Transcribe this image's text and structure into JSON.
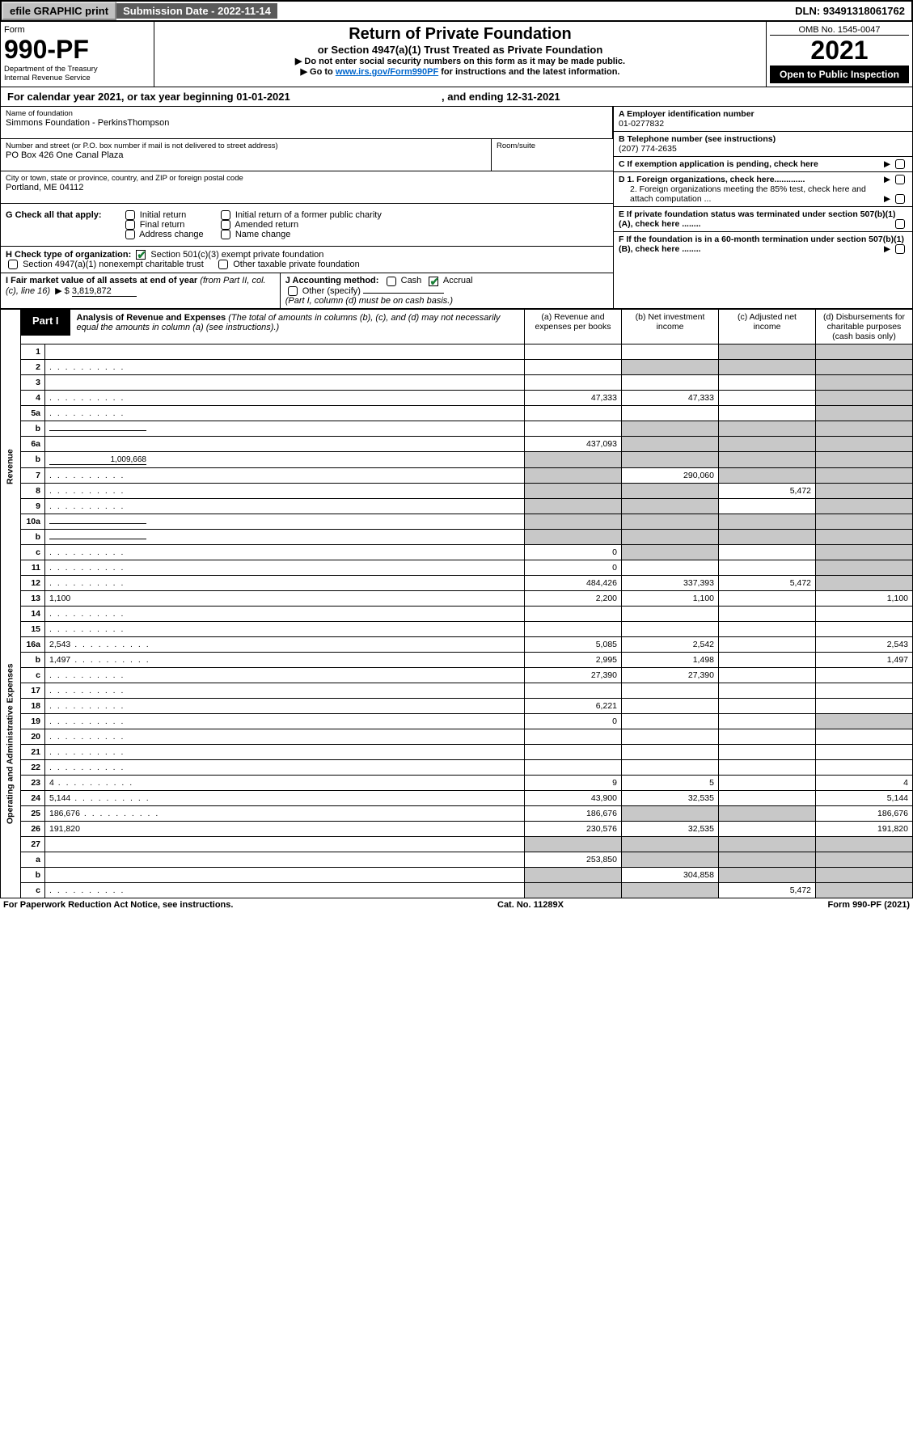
{
  "topbar": {
    "efile": "efile GRAPHIC print",
    "submission_label": "Submission Date - 2022-11-14",
    "dln": "DLN: 93491318061762"
  },
  "header": {
    "form_word": "Form",
    "form_no": "990-PF",
    "dept": "Department of the Treasury",
    "irs": "Internal Revenue Service",
    "title": "Return of Private Foundation",
    "subtitle": "or Section 4947(a)(1) Trust Treated as Private Foundation",
    "warn": "▶ Do not enter social security numbers on this form as it may be made public.",
    "goto_pre": "▶ Go to ",
    "goto_link": "www.irs.gov/Form990PF",
    "goto_post": " for instructions and the latest information.",
    "omb": "OMB No. 1545-0047",
    "year": "2021",
    "open": "Open to Public Inspection"
  },
  "cal": {
    "text_a": "For calendar year 2021, or tax year beginning ",
    "begin": "01-01-2021",
    "text_b": ", and ending ",
    "end": "12-31-2021"
  },
  "name_block": {
    "label": "Name of foundation",
    "value": "Simmons Foundation - PerkinsThompson",
    "addr_label": "Number and street (or P.O. box number if mail is not delivered to street address)",
    "addr": "PO Box 426 One Canal Plaza",
    "room_label": "Room/suite",
    "city_label": "City or town, state or province, country, and ZIP or foreign postal code",
    "city": "Portland, ME  04112"
  },
  "right_block": {
    "a_label": "A Employer identification number",
    "a_val": "01-0277832",
    "b_label": "B Telephone number (see instructions)",
    "b_val": "(207) 774-2635",
    "c_label": "C If exemption application is pending, check here",
    "d1": "D 1. Foreign organizations, check here.............",
    "d2": "2. Foreign organizations meeting the 85% test, check here and attach computation ...",
    "e": "E  If private foundation status was terminated under section 507(b)(1)(A), check here ........",
    "f": "F  If the foundation is in a 60-month termination under section 507(b)(1)(B), check here ........"
  },
  "g": {
    "label": "G Check all that apply:",
    "opts": [
      "Initial return",
      "Final return",
      "Address change",
      "Initial return of a former public charity",
      "Amended return",
      "Name change"
    ]
  },
  "h": {
    "label": "H Check type of organization:",
    "o1": "Section 501(c)(3) exempt private foundation",
    "o2": "Section 4947(a)(1) nonexempt charitable trust",
    "o3": "Other taxable private foundation"
  },
  "i": {
    "label_a": "I Fair market value of all assets at end of year ",
    "label_b": "(from Part II, col. (c), line 16)",
    "arrow": "▶ $",
    "val": "3,819,872"
  },
  "j": {
    "label": "J Accounting method:",
    "cash": "Cash",
    "accrual": "Accrual",
    "other": "Other (specify)",
    "note": "(Part I, column (d) must be on cash basis.)"
  },
  "part1": {
    "tag": "Part I",
    "title": "Analysis of Revenue and Expenses",
    "note": " (The total of amounts in columns (b), (c), and (d) may not necessarily equal the amounts in column (a) (see instructions).)",
    "col_a": "(a) Revenue and expenses per books",
    "col_b": "(b) Net investment income",
    "col_c": "(c) Adjusted net income",
    "col_d": "(d) Disbursements for charitable purposes (cash basis only)"
  },
  "vert": {
    "rev": "Revenue",
    "exp": "Operating and Administrative Expenses"
  },
  "rows": [
    {
      "n": "1",
      "d": "",
      "a": "",
      "b": "",
      "c": "",
      "sa": 0,
      "sb": 0,
      "sc": 1,
      "sd": 1
    },
    {
      "n": "2",
      "d": "",
      "a": "",
      "b": "",
      "c": "",
      "sa": 0,
      "sb": 1,
      "sc": 1,
      "sd": 1,
      "dots": 1,
      "raw": 1
    },
    {
      "n": "3",
      "d": "",
      "a": "",
      "b": "",
      "c": "",
      "sa": 0,
      "sb": 0,
      "sc": 0,
      "sd": 1
    },
    {
      "n": "4",
      "d": "",
      "a": "47,333",
      "b": "47,333",
      "c": "",
      "sa": 0,
      "sb": 0,
      "sc": 0,
      "sd": 1,
      "dots": 1
    },
    {
      "n": "5a",
      "d": "",
      "a": "",
      "b": "",
      "c": "",
      "sa": 0,
      "sb": 0,
      "sc": 0,
      "sd": 1,
      "dots": 1
    },
    {
      "n": "b",
      "d": "",
      "a": "",
      "b": "",
      "c": "",
      "sa": 0,
      "sb": 1,
      "sc": 1,
      "sd": 1,
      "inline": 1
    },
    {
      "n": "6a",
      "d": "",
      "a": "437,093",
      "b": "",
      "c": "",
      "sa": 0,
      "sb": 1,
      "sc": 1,
      "sd": 1
    },
    {
      "n": "b",
      "d": "",
      "a": "",
      "b": "",
      "c": "",
      "sa": 1,
      "sb": 1,
      "sc": 1,
      "sd": 1,
      "inline": 1,
      "inlineval": "1,009,668"
    },
    {
      "n": "7",
      "d": "",
      "a": "",
      "b": "290,060",
      "c": "",
      "sa": 1,
      "sb": 0,
      "sc": 1,
      "sd": 1,
      "dots": 1
    },
    {
      "n": "8",
      "d": "",
      "a": "",
      "b": "",
      "c": "5,472",
      "sa": 1,
      "sb": 1,
      "sc": 0,
      "sd": 1,
      "dots": 1
    },
    {
      "n": "9",
      "d": "",
      "a": "",
      "b": "",
      "c": "",
      "sa": 1,
      "sb": 1,
      "sc": 0,
      "sd": 1,
      "dots": 1
    },
    {
      "n": "10a",
      "d": "",
      "a": "",
      "b": "",
      "c": "",
      "sa": 1,
      "sb": 1,
      "sc": 1,
      "sd": 1,
      "inline": 1
    },
    {
      "n": "b",
      "d": "",
      "a": "",
      "b": "",
      "c": "",
      "sa": 1,
      "sb": 1,
      "sc": 1,
      "sd": 1,
      "inline": 1,
      "dots": 1
    },
    {
      "n": "c",
      "d": "",
      "a": "0",
      "b": "",
      "c": "",
      "sa": 0,
      "sb": 1,
      "sc": 0,
      "sd": 1,
      "dots": 1
    },
    {
      "n": "11",
      "d": "",
      "a": "0",
      "b": "",
      "c": "",
      "sa": 0,
      "sb": 0,
      "sc": 0,
      "sd": 1,
      "dots": 1
    },
    {
      "n": "12",
      "d": "",
      "a": "484,426",
      "b": "337,393",
      "c": "5,472",
      "sa": 0,
      "sb": 0,
      "sc": 0,
      "sd": 1,
      "dots": 1,
      "raw": 1
    },
    {
      "n": "13",
      "d": "1,100",
      "a": "2,200",
      "b": "1,100",
      "c": "",
      "sa": 0,
      "sb": 0,
      "sc": 0,
      "sd": 0
    },
    {
      "n": "14",
      "d": "",
      "a": "",
      "b": "",
      "c": "",
      "sa": 0,
      "sb": 0,
      "sc": 0,
      "sd": 0,
      "dots": 1
    },
    {
      "n": "15",
      "d": "",
      "a": "",
      "b": "",
      "c": "",
      "sa": 0,
      "sb": 0,
      "sc": 0,
      "sd": 0,
      "dots": 1
    },
    {
      "n": "16a",
      "d": "2,543",
      "a": "5,085",
      "b": "2,542",
      "c": "",
      "sa": 0,
      "sb": 0,
      "sc": 0,
      "sd": 0,
      "dots": 1
    },
    {
      "n": "b",
      "d": "1,497",
      "a": "2,995",
      "b": "1,498",
      "c": "",
      "sa": 0,
      "sb": 0,
      "sc": 0,
      "sd": 0,
      "dots": 1
    },
    {
      "n": "c",
      "d": "",
      "a": "27,390",
      "b": "27,390",
      "c": "",
      "sa": 0,
      "sb": 0,
      "sc": 0,
      "sd": 0,
      "dots": 1
    },
    {
      "n": "17",
      "d": "",
      "a": "",
      "b": "",
      "c": "",
      "sa": 0,
      "sb": 0,
      "sc": 0,
      "sd": 0,
      "dots": 1
    },
    {
      "n": "18",
      "d": "",
      "a": "6,221",
      "b": "",
      "c": "",
      "sa": 0,
      "sb": 0,
      "sc": 0,
      "sd": 0,
      "dots": 1
    },
    {
      "n": "19",
      "d": "",
      "a": "0",
      "b": "",
      "c": "",
      "sa": 0,
      "sb": 0,
      "sc": 0,
      "sd": 1,
      "dots": 1
    },
    {
      "n": "20",
      "d": "",
      "a": "",
      "b": "",
      "c": "",
      "sa": 0,
      "sb": 0,
      "sc": 0,
      "sd": 0,
      "dots": 1
    },
    {
      "n": "21",
      "d": "",
      "a": "",
      "b": "",
      "c": "",
      "sa": 0,
      "sb": 0,
      "sc": 0,
      "sd": 0,
      "dots": 1
    },
    {
      "n": "22",
      "d": "",
      "a": "",
      "b": "",
      "c": "",
      "sa": 0,
      "sb": 0,
      "sc": 0,
      "sd": 0,
      "dots": 1
    },
    {
      "n": "23",
      "d": "4",
      "a": "9",
      "b": "5",
      "c": "",
      "sa": 0,
      "sb": 0,
      "sc": 0,
      "sd": 0,
      "dots": 1
    },
    {
      "n": "24",
      "d": "5,144",
      "a": "43,900",
      "b": "32,535",
      "c": "",
      "sa": 0,
      "sb": 0,
      "sc": 0,
      "sd": 0,
      "dots": 1,
      "raw": 1
    },
    {
      "n": "25",
      "d": "186,676",
      "a": "186,676",
      "b": "",
      "c": "",
      "sa": 0,
      "sb": 1,
      "sc": 1,
      "sd": 0,
      "dots": 1
    },
    {
      "n": "26",
      "d": "191,820",
      "a": "230,576",
      "b": "32,535",
      "c": "",
      "sa": 0,
      "sb": 0,
      "sc": 0,
      "sd": 0,
      "raw": 1
    },
    {
      "n": "27",
      "d": "",
      "a": "",
      "b": "",
      "c": "",
      "sa": 1,
      "sb": 1,
      "sc": 1,
      "sd": 1
    },
    {
      "n": "a",
      "d": "",
      "a": "253,850",
      "b": "",
      "c": "",
      "sa": 0,
      "sb": 1,
      "sc": 1,
      "sd": 1,
      "raw": 1
    },
    {
      "n": "b",
      "d": "",
      "a": "",
      "b": "304,858",
      "c": "",
      "sa": 1,
      "sb": 0,
      "sc": 1,
      "sd": 1,
      "raw": 1
    },
    {
      "n": "c",
      "d": "",
      "a": "",
      "b": "",
      "c": "5,472",
      "sa": 1,
      "sb": 1,
      "sc": 0,
      "sd": 1,
      "raw": 1,
      "dots": 1
    }
  ],
  "foot": {
    "left": "For Paperwork Reduction Act Notice, see instructions.",
    "mid": "Cat. No. 11289X",
    "right_a": "Form ",
    "right_b": "990-PF",
    "right_c": " (2021)"
  }
}
